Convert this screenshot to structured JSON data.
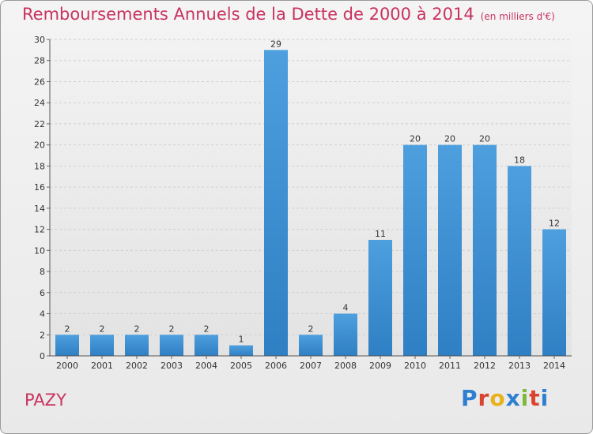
{
  "header": {
    "title": "Remboursements Annuels de la Dette de 2000 à 2014",
    "unit": "(en milliers d'€)"
  },
  "footer": {
    "commune": "PAZY",
    "logo": "Proxiti",
    "logo_colors": [
      "#2e7fd1",
      "#d9442e",
      "#e8b21a",
      "#2e7fd1",
      "#7db83a",
      "#d9442e",
      "#2e7fd1"
    ]
  },
  "chart_data": {
    "type": "bar",
    "title": "Remboursements Annuels de la Dette de 2000 à 2014",
    "unit": "(en milliers d'€)",
    "xlabel": "",
    "ylabel": "",
    "categories": [
      "2000",
      "2001",
      "2002",
      "2003",
      "2004",
      "2005",
      "2006",
      "2007",
      "2008",
      "2009",
      "2010",
      "2011",
      "2012",
      "2013",
      "2014"
    ],
    "values": [
      2,
      2,
      2,
      2,
      2,
      1,
      29,
      2,
      4,
      11,
      20,
      20,
      20,
      18,
      12
    ],
    "data_labels": [
      "2",
      "2",
      "2",
      "2",
      "2",
      "1",
      "29",
      "2",
      "4",
      "11",
      "20",
      "20",
      "20",
      "18",
      "12"
    ],
    "ylim": [
      0,
      30
    ],
    "yticks": [
      0,
      2,
      4,
      6,
      8,
      10,
      12,
      14,
      16,
      18,
      20,
      22,
      24,
      26,
      28,
      30
    ],
    "grid": true,
    "legend": "none",
    "bar_color": "#4d9fde",
    "bar_color_dark": "#2f7fc4"
  }
}
